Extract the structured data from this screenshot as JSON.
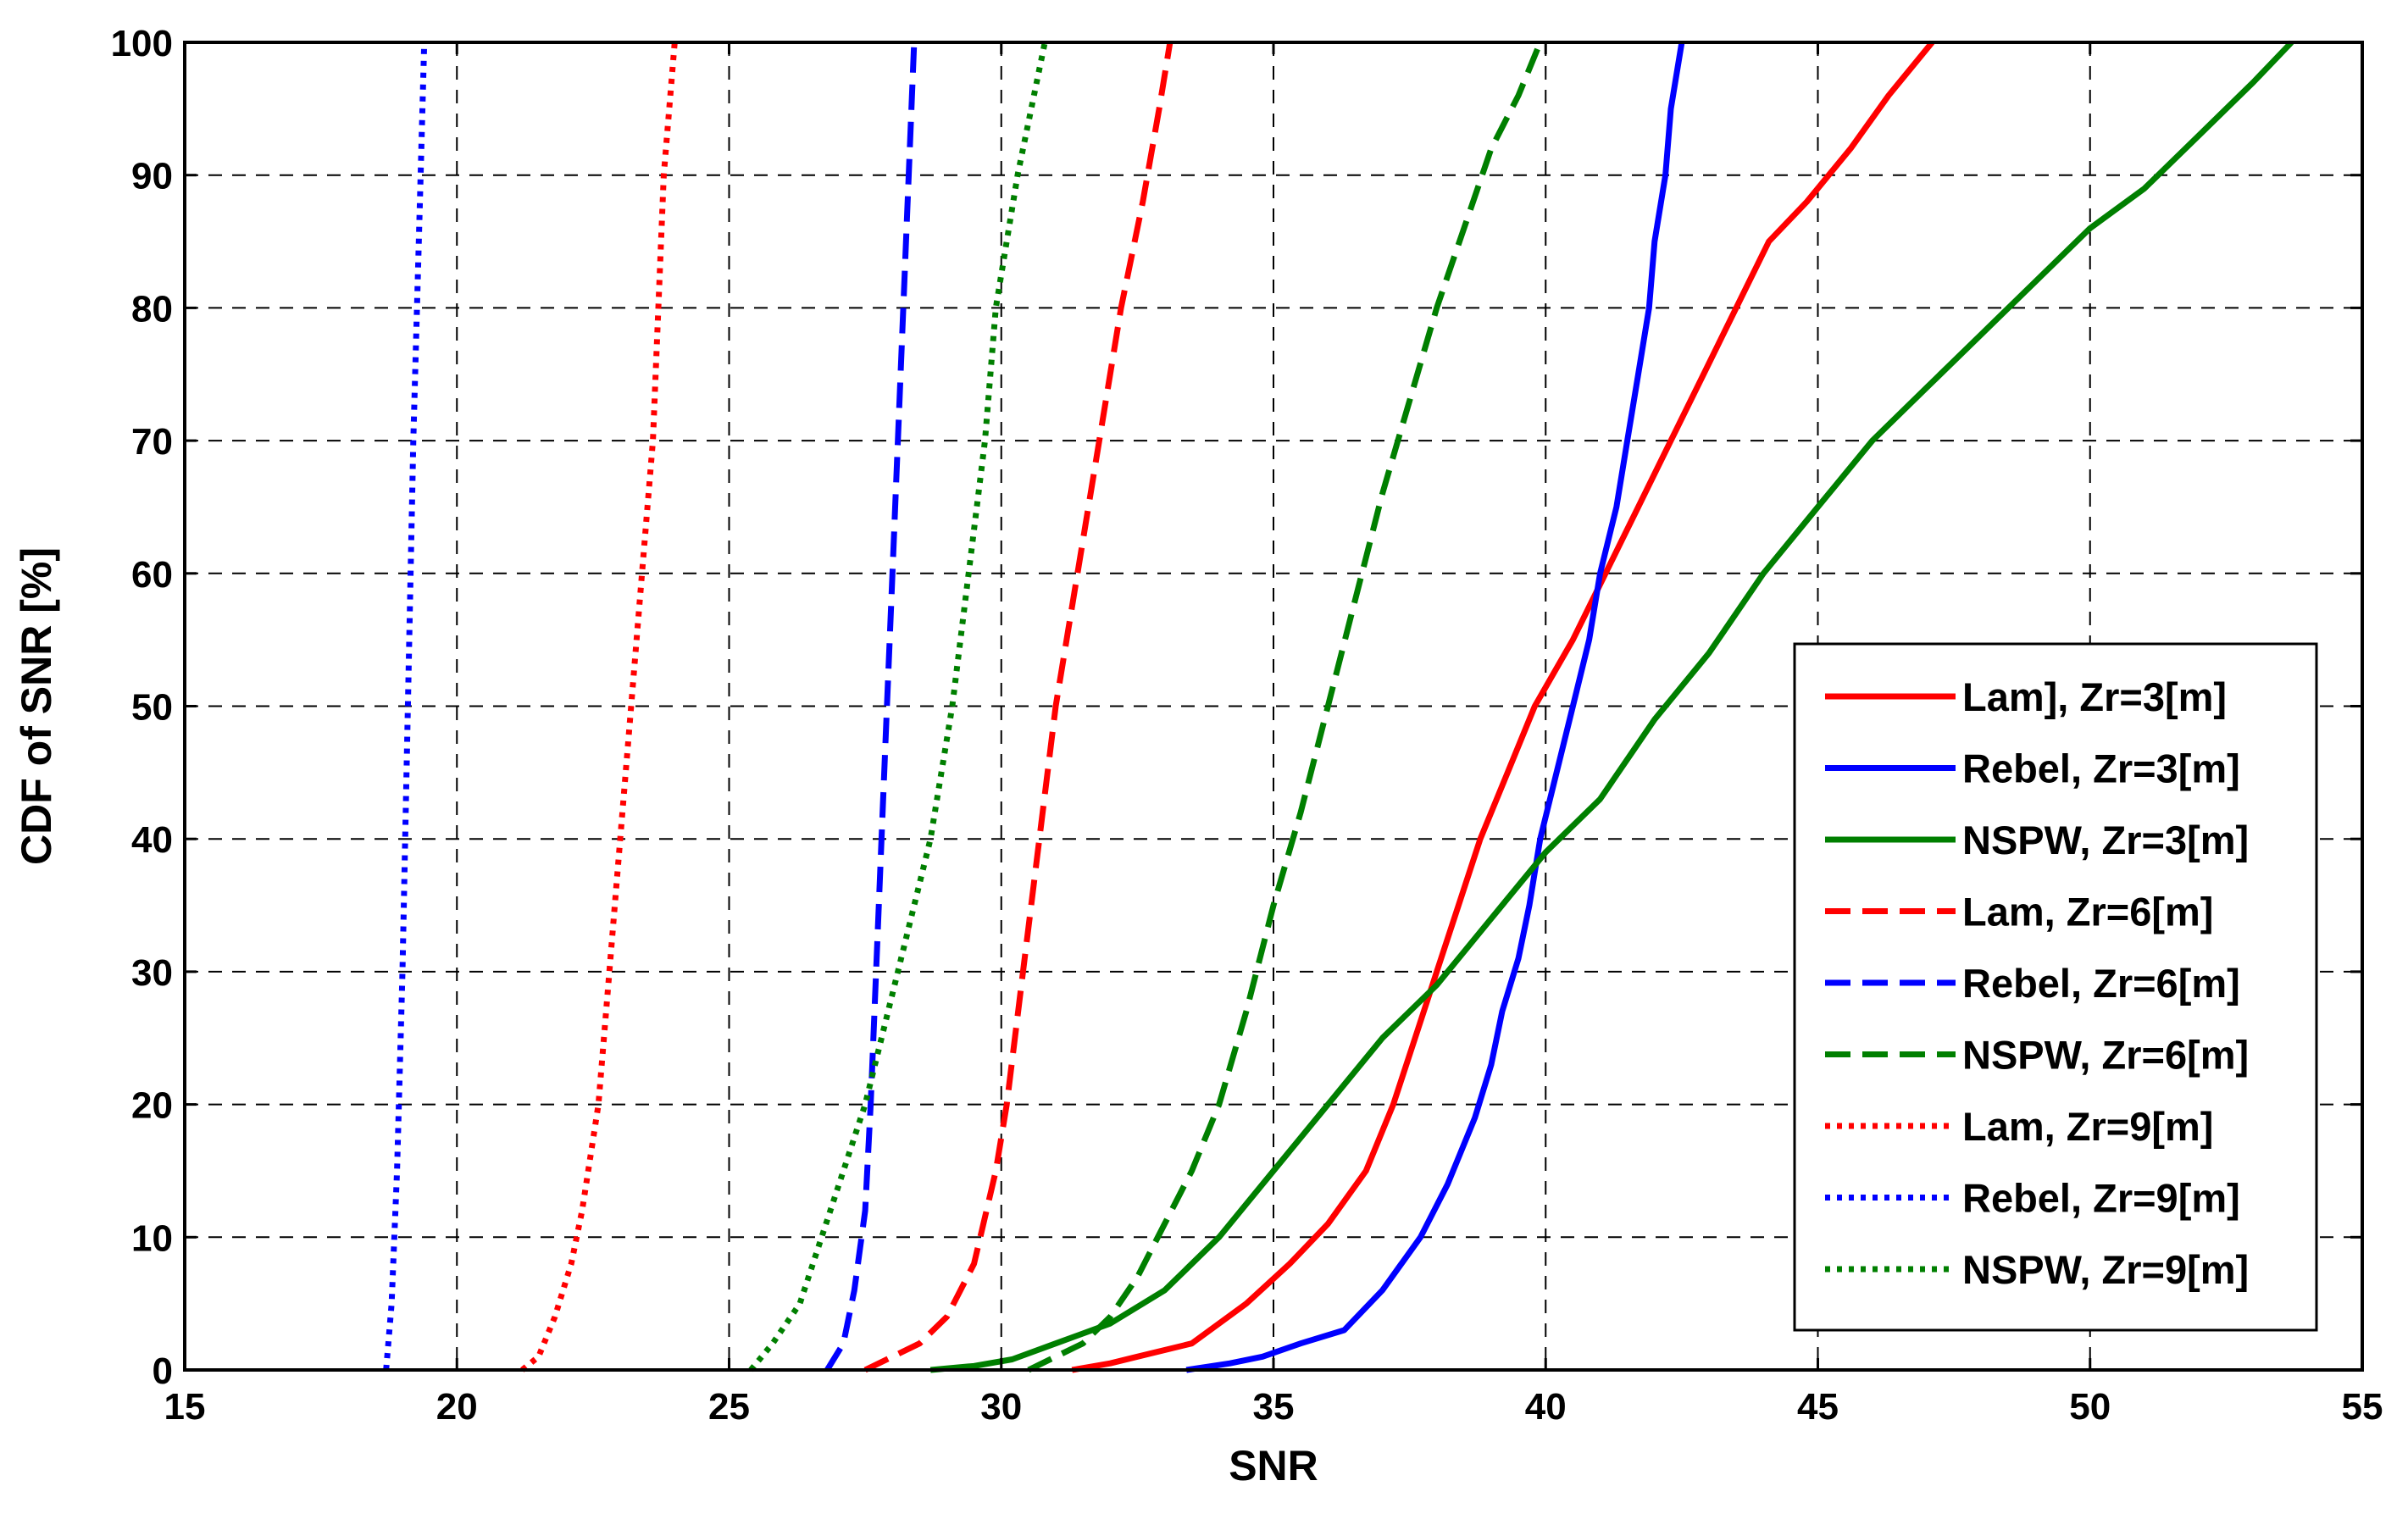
{
  "chart_data": {
    "type": "line",
    "title": "",
    "xlabel": "SNR",
    "ylabel": "CDF of SNR [%]",
    "xlim": [
      15,
      55
    ],
    "ylim": [
      0,
      100
    ],
    "xticks": [
      15,
      20,
      25,
      30,
      35,
      40,
      45,
      50,
      55
    ],
    "yticks": [
      0,
      10,
      20,
      30,
      40,
      50,
      60,
      70,
      80,
      90,
      100
    ],
    "grid": true,
    "legend_position": "lower-right",
    "series": [
      {
        "name": "Lam], Zr=3[m]",
        "color": "#ff0000",
        "dash": "solid",
        "points": [
          [
            31.3,
            0
          ],
          [
            32.0,
            0.5
          ],
          [
            32.5,
            1
          ],
          [
            33.5,
            2
          ],
          [
            34.5,
            5
          ],
          [
            35.3,
            8
          ],
          [
            36.0,
            11
          ],
          [
            36.7,
            15
          ],
          [
            37.2,
            20
          ],
          [
            37.6,
            25
          ],
          [
            38.0,
            30
          ],
          [
            38.4,
            35
          ],
          [
            38.8,
            40
          ],
          [
            39.3,
            45
          ],
          [
            39.8,
            50
          ],
          [
            40.5,
            55
          ],
          [
            41.1,
            60
          ],
          [
            41.7,
            65
          ],
          [
            42.3,
            70
          ],
          [
            42.9,
            75
          ],
          [
            43.5,
            80
          ],
          [
            44.1,
            85
          ],
          [
            44.8,
            88
          ],
          [
            45.6,
            92
          ],
          [
            46.3,
            96
          ],
          [
            47.1,
            100
          ]
        ]
      },
      {
        "name": "Rebel, Zr=3[m]",
        "color": "#0000ff",
        "dash": "solid",
        "points": [
          [
            33.4,
            0
          ],
          [
            34.2,
            0.5
          ],
          [
            34.8,
            1
          ],
          [
            35.5,
            2
          ],
          [
            36.3,
            3
          ],
          [
            37.0,
            6
          ],
          [
            37.7,
            10
          ],
          [
            38.2,
            14
          ],
          [
            38.7,
            19
          ],
          [
            39.0,
            23
          ],
          [
            39.2,
            27
          ],
          [
            39.5,
            31
          ],
          [
            39.7,
            35
          ],
          [
            39.9,
            40
          ],
          [
            40.2,
            45
          ],
          [
            40.5,
            50
          ],
          [
            40.8,
            55
          ],
          [
            41.0,
            60
          ],
          [
            41.3,
            65
          ],
          [
            41.5,
            70
          ],
          [
            41.7,
            75
          ],
          [
            41.9,
            80
          ],
          [
            42.0,
            85
          ],
          [
            42.2,
            90
          ],
          [
            42.3,
            95
          ],
          [
            42.5,
            100
          ]
        ]
      },
      {
        "name": "NSPW, Zr=3[m]",
        "color": "#007f00",
        "dash": "solid",
        "points": [
          [
            28.7,
            0
          ],
          [
            29.5,
            0.3
          ],
          [
            30.2,
            0.8
          ],
          [
            31.0,
            2
          ],
          [
            32.0,
            3.5
          ],
          [
            33.0,
            6
          ],
          [
            34.0,
            10
          ],
          [
            35.0,
            15
          ],
          [
            36.0,
            20
          ],
          [
            37.0,
            25
          ],
          [
            38.0,
            29
          ],
          [
            39.0,
            34
          ],
          [
            40.0,
            39
          ],
          [
            41.0,
            43
          ],
          [
            42.0,
            49
          ],
          [
            43.0,
            54
          ],
          [
            44.0,
            60
          ],
          [
            45.0,
            65
          ],
          [
            46.0,
            70
          ],
          [
            47.0,
            74
          ],
          [
            48.0,
            78
          ],
          [
            49.0,
            82
          ],
          [
            50.0,
            86
          ],
          [
            51.0,
            89
          ],
          [
            52.0,
            93
          ],
          [
            53.0,
            97
          ],
          [
            53.7,
            100
          ]
        ]
      },
      {
        "name": "Lam, Zr=6[m]",
        "color": "#ff0000",
        "dash": "dashed",
        "points": [
          [
            27.5,
            0
          ],
          [
            28.0,
            1
          ],
          [
            28.5,
            2
          ],
          [
            29.0,
            4
          ],
          [
            29.5,
            8
          ],
          [
            29.9,
            15
          ],
          [
            30.1,
            20
          ],
          [
            30.4,
            30
          ],
          [
            30.7,
            40
          ],
          [
            31.0,
            50
          ],
          [
            31.4,
            60
          ],
          [
            31.8,
            70
          ],
          [
            32.2,
            80
          ],
          [
            32.6,
            88
          ],
          [
            32.9,
            95
          ],
          [
            33.1,
            100
          ]
        ]
      },
      {
        "name": "Rebel, Zr=6[m]",
        "color": "#0000ff",
        "dash": "dashed",
        "points": [
          [
            26.8,
            0
          ],
          [
            27.1,
            2
          ],
          [
            27.3,
            6
          ],
          [
            27.5,
            12
          ],
          [
            27.6,
            20
          ],
          [
            27.7,
            30
          ],
          [
            27.8,
            40
          ],
          [
            27.9,
            50
          ],
          [
            28.0,
            60
          ],
          [
            28.1,
            70
          ],
          [
            28.2,
            80
          ],
          [
            28.3,
            90
          ],
          [
            28.4,
            100
          ]
        ]
      },
      {
        "name": "NSPW, Zr=6[m]",
        "color": "#007f00",
        "dash": "dashed",
        "points": [
          [
            30.5,
            0
          ],
          [
            31.0,
            1
          ],
          [
            31.5,
            2
          ],
          [
            32.0,
            4
          ],
          [
            32.5,
            7
          ],
          [
            33.0,
            11
          ],
          [
            33.5,
            15
          ],
          [
            34.0,
            20
          ],
          [
            34.5,
            27
          ],
          [
            35.0,
            35
          ],
          [
            35.5,
            42
          ],
          [
            36.0,
            50
          ],
          [
            36.5,
            58
          ],
          [
            37.0,
            66
          ],
          [
            37.5,
            73
          ],
          [
            38.0,
            80
          ],
          [
            38.5,
            86
          ],
          [
            39.0,
            92
          ],
          [
            39.5,
            96
          ],
          [
            39.9,
            100
          ]
        ]
      },
      {
        "name": "Lam, Zr=9[m]",
        "color": "#ff0000",
        "dash": "dotted",
        "points": [
          [
            21.2,
            0
          ],
          [
            21.5,
            1
          ],
          [
            21.8,
            4
          ],
          [
            22.1,
            8
          ],
          [
            22.3,
            12
          ],
          [
            22.6,
            20
          ],
          [
            22.8,
            30
          ],
          [
            23.0,
            40
          ],
          [
            23.2,
            50
          ],
          [
            23.4,
            60
          ],
          [
            23.6,
            70
          ],
          [
            23.7,
            80
          ],
          [
            23.8,
            90
          ],
          [
            24.0,
            100
          ]
        ]
      },
      {
        "name": "Rebel, Zr=9[m]",
        "color": "#0000ff",
        "dash": "dotted",
        "points": [
          [
            18.7,
            0
          ],
          [
            18.8,
            5
          ],
          [
            18.9,
            15
          ],
          [
            19.0,
            30
          ],
          [
            19.1,
            50
          ],
          [
            19.2,
            70
          ],
          [
            19.3,
            85
          ],
          [
            19.4,
            100
          ]
        ]
      },
      {
        "name": "NSPW, Zr=9[m]",
        "color": "#007f00",
        "dash": "dotted",
        "points": [
          [
            25.4,
            0
          ],
          [
            25.8,
            2
          ],
          [
            26.3,
            5
          ],
          [
            26.7,
            10
          ],
          [
            27.1,
            15
          ],
          [
            27.5,
            20
          ],
          [
            28.1,
            30
          ],
          [
            28.7,
            40
          ],
          [
            29.1,
            50
          ],
          [
            29.4,
            60
          ],
          [
            29.7,
            70
          ],
          [
            29.9,
            80
          ],
          [
            30.3,
            90
          ],
          [
            30.8,
            100
          ]
        ]
      }
    ]
  }
}
